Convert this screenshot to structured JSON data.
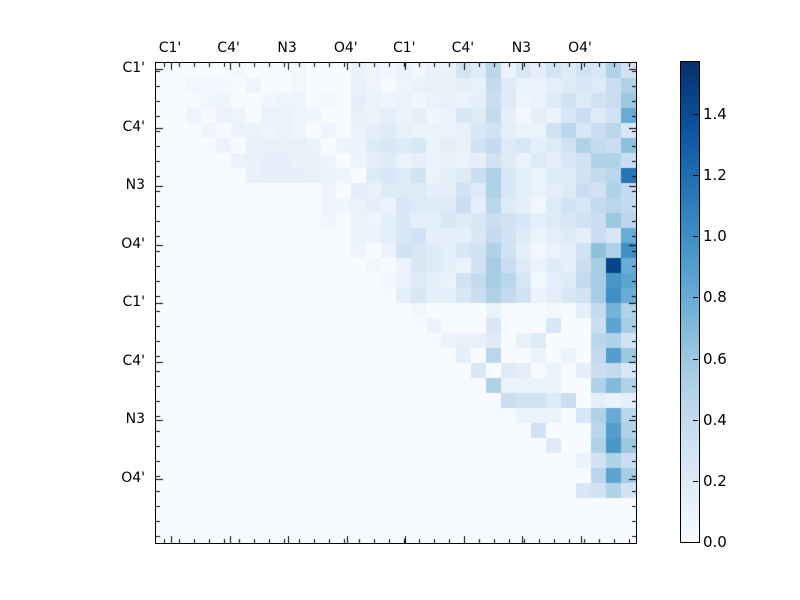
{
  "figure": {
    "background": "#ffffff",
    "frame_color": "#000000",
    "text_color": "#000000"
  },
  "chart_data": {
    "type": "heatmap",
    "title": "",
    "description": "Upper-triangular pairwise heatmap with Blues colormap",
    "grid_size": 32,
    "vmin": 0,
    "vmax": 1.57,
    "x_axis": {
      "tick_labels": [
        "C1'",
        "C4'",
        "N3",
        "O4'",
        "C1'",
        "C4'",
        "N3",
        "O4'"
      ]
    },
    "y_axis": {
      "tick_labels": [
        "C1'",
        "C4'",
        "N3",
        "O4'",
        "C1'",
        "C4'",
        "N3",
        "O4'"
      ]
    },
    "colormap": {
      "name": "Blues",
      "stops": [
        {
          "t": 0.0,
          "color": "#f7fbff"
        },
        {
          "t": 0.125,
          "color": "#deebf7"
        },
        {
          "t": 0.25,
          "color": "#c6dbef"
        },
        {
          "t": 0.375,
          "color": "#9ecae1"
        },
        {
          "t": 0.5,
          "color": "#6baed6"
        },
        {
          "t": 0.625,
          "color": "#4292c6"
        },
        {
          "t": 0.75,
          "color": "#2171b5"
        },
        {
          "t": 0.875,
          "color": "#08519c"
        },
        {
          "t": 1.0,
          "color": "#08306b"
        }
      ]
    },
    "colorbar": {
      "position": "right",
      "tick_values": [
        0.0,
        0.2,
        0.4,
        0.6,
        0.8,
        1.0,
        1.2,
        1.4
      ],
      "tick_labels": [
        "0.0",
        "0.2",
        "0.4",
        "0.6",
        "0.8",
        "1.0",
        "1.2",
        "1.4"
      ]
    },
    "matrix": [
      [
        0,
        0,
        0,
        0,
        0,
        0.05,
        0,
        0,
        0,
        0.05,
        0,
        0,
        0,
        0.1,
        0.08,
        0.05,
        0.1,
        0.05,
        0.12,
        0.1,
        0.3,
        0.2,
        0.45,
        0.1,
        0.25,
        0.15,
        0.3,
        0.2,
        0.3,
        0.25,
        0.5,
        0.3
      ],
      [
        0,
        0,
        0.05,
        0.05,
        0.04,
        0,
        0.08,
        0,
        0,
        0.05,
        0,
        0,
        0,
        0.12,
        0.08,
        0,
        0.08,
        0.1,
        0.12,
        0.12,
        0.15,
        0.12,
        0.4,
        0.2,
        0.1,
        0.1,
        0.15,
        0.2,
        0.25,
        0.2,
        0.35,
        0.5
      ],
      [
        0,
        0,
        0,
        0.06,
        0.08,
        0,
        0,
        0.06,
        0.08,
        0.08,
        0,
        0.05,
        0,
        0.15,
        0.1,
        0.08,
        0.1,
        0.06,
        0.1,
        0.12,
        0.1,
        0.15,
        0.35,
        0.2,
        0.08,
        0.1,
        0.2,
        0.3,
        0.2,
        0.3,
        0.35,
        0.6
      ],
      [
        0,
        0,
        0.08,
        0,
        0.1,
        0.08,
        0,
        0.1,
        0.1,
        0.08,
        0.06,
        0,
        0,
        0.12,
        0.1,
        0.15,
        0.1,
        0.15,
        0.06,
        0.1,
        0.25,
        0.2,
        0.4,
        0.15,
        0.05,
        0.15,
        0.1,
        0.25,
        0.35,
        0.2,
        0.3,
        0.8
      ],
      [
        0,
        0,
        0,
        0.08,
        0,
        0.1,
        0.1,
        0.08,
        0.1,
        0.08,
        0,
        0.08,
        0,
        0.1,
        0.15,
        0.2,
        0.12,
        0.1,
        0.1,
        0.1,
        0.12,
        0.25,
        0.3,
        0.15,
        0.1,
        0.1,
        0.3,
        0.45,
        0.25,
        0.35,
        0.45,
        0.25
      ],
      [
        0,
        0,
        0,
        0,
        0.1,
        0,
        0.12,
        0.12,
        0.12,
        0.12,
        0.1,
        0,
        0.08,
        0.1,
        0.2,
        0.25,
        0.2,
        0.25,
        0.1,
        0.15,
        0.12,
        0.3,
        0.4,
        0.2,
        0.25,
        0.15,
        0.2,
        0.3,
        0.5,
        0.4,
        0.35,
        0.65
      ],
      [
        0,
        0,
        0,
        0,
        0,
        0.1,
        0.12,
        0.15,
        0.15,
        0.12,
        0.12,
        0.08,
        0,
        0.08,
        0.15,
        0.2,
        0.1,
        0.15,
        0.1,
        0.12,
        0.1,
        0.15,
        0.3,
        0.2,
        0.1,
        0.2,
        0.15,
        0.25,
        0.3,
        0.5,
        0.5,
        0.35
      ],
      [
        0,
        0,
        0,
        0,
        0,
        0,
        0.12,
        0.15,
        0.15,
        0.15,
        0.12,
        0.1,
        0.08,
        0,
        0.2,
        0.25,
        0.2,
        0.3,
        0.1,
        0.15,
        0.2,
        0.35,
        0.5,
        0.25,
        0.15,
        0.1,
        0.2,
        0.2,
        0.3,
        0.4,
        0.45,
        1.15
      ],
      [
        0,
        0,
        0,
        0,
        0,
        0,
        0,
        0,
        0,
        0,
        0,
        0.08,
        0,
        0.15,
        0.12,
        0.2,
        0.2,
        0.2,
        0.15,
        0.15,
        0.3,
        0.2,
        0.5,
        0.25,
        0.15,
        0.1,
        0.15,
        0.2,
        0.35,
        0.3,
        0.5,
        0.4
      ],
      [
        0,
        0,
        0,
        0,
        0,
        0,
        0,
        0,
        0,
        0,
        0,
        0.08,
        0.06,
        0.1,
        0.15,
        0.1,
        0.25,
        0.2,
        0.2,
        0.2,
        0.35,
        0.15,
        0.45,
        0.2,
        0.15,
        0.05,
        0.2,
        0.3,
        0.25,
        0.4,
        0.45,
        0.4
      ],
      [
        0,
        0,
        0,
        0,
        0,
        0,
        0,
        0,
        0,
        0,
        0,
        0.06,
        0,
        0.1,
        0.08,
        0.15,
        0.25,
        0.15,
        0.15,
        0.25,
        0.2,
        0.25,
        0.35,
        0.3,
        0.25,
        0.15,
        0.2,
        0.25,
        0.3,
        0.35,
        0.6,
        0.45
      ],
      [
        0,
        0,
        0,
        0,
        0,
        0,
        0,
        0,
        0,
        0,
        0,
        0,
        0,
        0.1,
        0.1,
        0.15,
        0.25,
        0.3,
        0.15,
        0.15,
        0.15,
        0.25,
        0.4,
        0.3,
        0.2,
        0.1,
        0.15,
        0.2,
        0.15,
        0.35,
        0.25,
        0.8
      ],
      [
        0,
        0,
        0,
        0,
        0,
        0,
        0,
        0,
        0,
        0,
        0,
        0,
        0,
        0.08,
        0,
        0.1,
        0.3,
        0.25,
        0.2,
        0.15,
        0.25,
        0.3,
        0.5,
        0.3,
        0.15,
        0.05,
        0.1,
        0.15,
        0.3,
        0.65,
        0.5,
        1.0
      ],
      [
        0,
        0,
        0,
        0,
        0,
        0,
        0,
        0,
        0,
        0,
        0,
        0,
        0,
        0,
        0.05,
        0,
        0.1,
        0.25,
        0.2,
        0.15,
        0.1,
        0.3,
        0.55,
        0.35,
        0.2,
        0.1,
        0.2,
        0.15,
        0.35,
        0.55,
        1.45,
        0.8
      ],
      [
        0,
        0,
        0,
        0,
        0,
        0,
        0,
        0,
        0,
        0,
        0,
        0,
        0,
        0,
        0,
        0.05,
        0.1,
        0.2,
        0.15,
        0.1,
        0.3,
        0.4,
        0.55,
        0.45,
        0.25,
        0.05,
        0.15,
        0.2,
        0.4,
        0.55,
        0.95,
        0.85
      ],
      [
        0,
        0,
        0,
        0,
        0,
        0,
        0,
        0,
        0,
        0,
        0,
        0,
        0,
        0,
        0,
        0,
        0.15,
        0.25,
        0.15,
        0.15,
        0.25,
        0.35,
        0.5,
        0.4,
        0.3,
        0.1,
        0.15,
        0.25,
        0.3,
        0.55,
        1.0,
        0.8
      ],
      [
        0,
        0,
        0,
        0,
        0,
        0,
        0,
        0,
        0,
        0,
        0,
        0,
        0,
        0,
        0,
        0,
        0,
        0.05,
        0,
        0,
        0,
        0,
        0.1,
        0,
        0,
        0,
        0.05,
        0,
        0.15,
        0.4,
        0.75,
        0.5
      ],
      [
        0,
        0,
        0,
        0,
        0,
        0,
        0,
        0,
        0,
        0,
        0,
        0,
        0,
        0,
        0,
        0,
        0,
        0,
        0.1,
        0,
        0,
        0,
        0.25,
        0,
        0,
        0,
        0.25,
        0,
        0,
        0.35,
        0.85,
        0.55
      ],
      [
        0,
        0,
        0,
        0,
        0,
        0,
        0,
        0,
        0,
        0,
        0,
        0,
        0,
        0,
        0,
        0,
        0,
        0,
        0,
        0.1,
        0.12,
        0.12,
        0.2,
        0,
        0.12,
        0.2,
        0,
        0,
        0,
        0.45,
        0.5,
        0.3
      ],
      [
        0,
        0,
        0,
        0,
        0,
        0,
        0,
        0,
        0,
        0,
        0,
        0,
        0,
        0,
        0,
        0,
        0,
        0,
        0,
        0,
        0.15,
        0,
        0.45,
        0,
        0,
        0.1,
        0,
        0.1,
        0,
        0.4,
        0.9,
        0.6
      ],
      [
        0,
        0,
        0,
        0,
        0,
        0,
        0,
        0,
        0,
        0,
        0,
        0,
        0,
        0,
        0,
        0,
        0,
        0,
        0,
        0,
        0,
        0.25,
        0,
        0.2,
        0.15,
        0,
        0.1,
        0,
        0.15,
        0.35,
        0.4,
        0.25
      ],
      [
        0,
        0,
        0,
        0,
        0,
        0,
        0,
        0,
        0,
        0,
        0,
        0,
        0,
        0,
        0,
        0,
        0,
        0,
        0,
        0,
        0,
        0,
        0.5,
        0.1,
        0.1,
        0.1,
        0.1,
        0,
        0,
        0.5,
        0.7,
        0.5
      ],
      [
        0,
        0,
        0,
        0,
        0,
        0,
        0,
        0,
        0,
        0,
        0,
        0,
        0,
        0,
        0,
        0,
        0,
        0,
        0,
        0,
        0,
        0,
        0,
        0.35,
        0.3,
        0.3,
        0.2,
        0.35,
        0,
        0.15,
        0.1,
        0.15
      ],
      [
        0,
        0,
        0,
        0,
        0,
        0,
        0,
        0,
        0,
        0,
        0,
        0,
        0,
        0,
        0,
        0,
        0,
        0,
        0,
        0,
        0,
        0,
        0,
        0,
        0.1,
        0.1,
        0.1,
        0,
        0.25,
        0.5,
        0.8,
        0.45
      ],
      [
        0,
        0,
        0,
        0,
        0,
        0,
        0,
        0,
        0,
        0,
        0,
        0,
        0,
        0,
        0,
        0,
        0,
        0,
        0,
        0,
        0,
        0,
        0,
        0,
        0,
        0.3,
        0,
        0,
        0,
        0.45,
        0.9,
        0.5
      ],
      [
        0,
        0,
        0,
        0,
        0,
        0,
        0,
        0,
        0,
        0,
        0,
        0,
        0,
        0,
        0,
        0,
        0,
        0,
        0,
        0,
        0,
        0,
        0,
        0,
        0,
        0,
        0.2,
        0,
        0,
        0.5,
        0.95,
        0.6
      ],
      [
        0,
        0,
        0,
        0,
        0,
        0,
        0,
        0,
        0,
        0,
        0,
        0,
        0,
        0,
        0,
        0,
        0,
        0,
        0,
        0,
        0,
        0,
        0,
        0,
        0,
        0,
        0,
        0,
        0.1,
        0.3,
        0.5,
        0.35
      ],
      [
        0,
        0,
        0,
        0,
        0,
        0,
        0,
        0,
        0,
        0,
        0,
        0,
        0,
        0,
        0,
        0,
        0,
        0,
        0,
        0,
        0,
        0,
        0,
        0,
        0,
        0,
        0,
        0,
        0,
        0.45,
        0.85,
        0.55
      ],
      [
        0,
        0,
        0,
        0,
        0,
        0,
        0,
        0,
        0,
        0,
        0,
        0,
        0,
        0,
        0,
        0,
        0,
        0,
        0,
        0,
        0,
        0,
        0,
        0,
        0,
        0,
        0,
        0,
        0.25,
        0.3,
        0.5,
        0.3
      ],
      [
        0,
        0,
        0,
        0,
        0,
        0,
        0,
        0,
        0,
        0,
        0,
        0,
        0,
        0,
        0,
        0,
        0,
        0,
        0,
        0,
        0,
        0,
        0,
        0,
        0,
        0,
        0,
        0,
        0,
        0,
        0,
        0
      ],
      [
        0,
        0,
        0,
        0,
        0,
        0,
        0,
        0,
        0,
        0,
        0,
        0,
        0,
        0,
        0,
        0,
        0,
        0,
        0,
        0,
        0,
        0,
        0,
        0,
        0,
        0,
        0,
        0,
        0,
        0,
        0,
        0
      ],
      [
        0,
        0,
        0,
        0,
        0,
        0,
        0,
        0,
        0,
        0,
        0,
        0,
        0,
        0,
        0,
        0,
        0,
        0,
        0,
        0,
        0,
        0,
        0,
        0,
        0,
        0,
        0,
        0,
        0,
        0,
        0,
        0
      ]
    ]
  }
}
